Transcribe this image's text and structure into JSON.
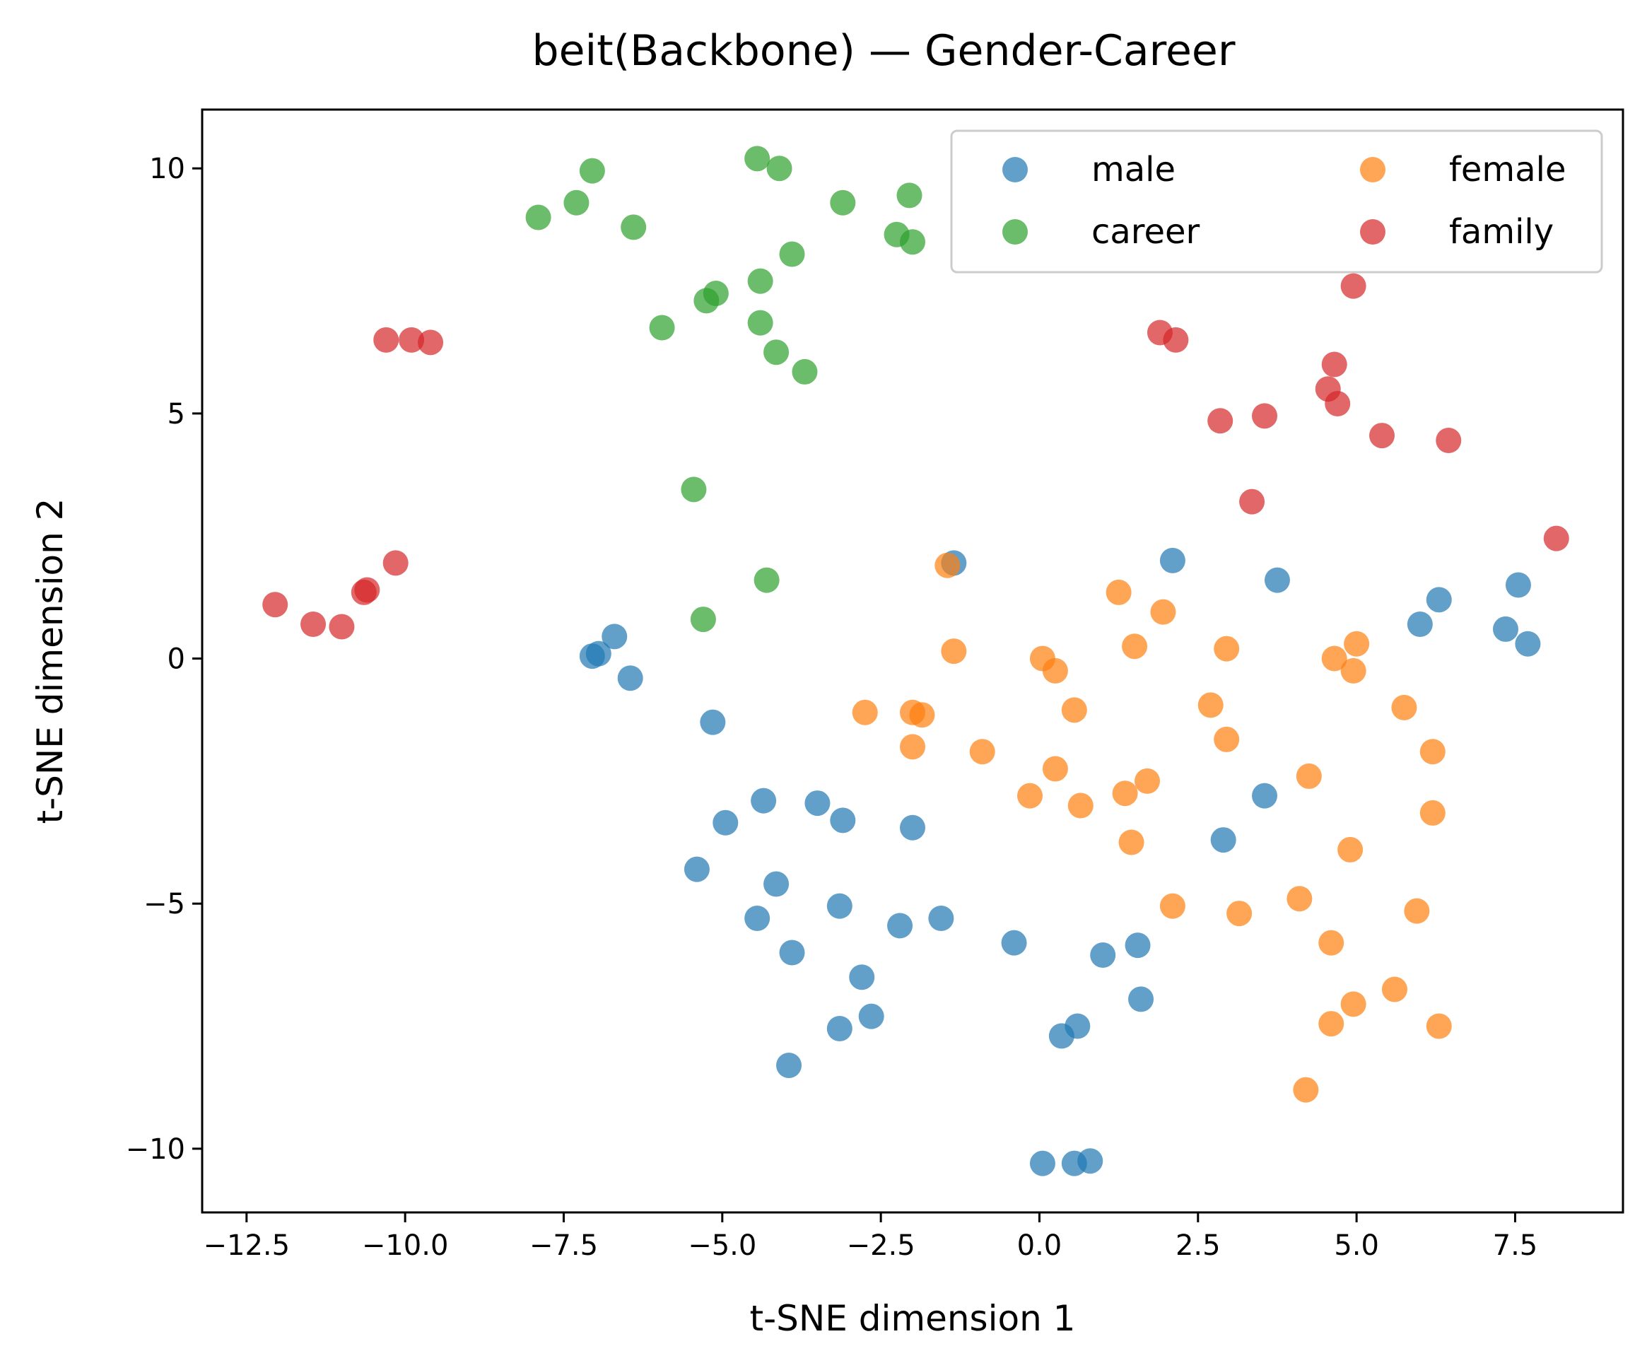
{
  "chart_data": {
    "type": "scatter",
    "title": "beit(Backbone) — Gender-Career",
    "xlabel": "t-SNE dimension 1",
    "ylabel": "t-SNE dimension 2",
    "xlim": [
      -13.2,
      9.2
    ],
    "ylim": [
      -11.3,
      11.2
    ],
    "xticks": [
      -12.5,
      -10.0,
      -7.5,
      -5.0,
      -2.5,
      0.0,
      2.5,
      5.0,
      7.5
    ],
    "xtick_labels": [
      "−12.5",
      "−10.0",
      "−7.5",
      "−5.0",
      "−2.5",
      "0.0",
      "2.5",
      "5.0",
      "7.5"
    ],
    "yticks": [
      -10,
      -5,
      0,
      5,
      10
    ],
    "ytick_labels": [
      "−10",
      "−5",
      "0",
      "5",
      "10"
    ],
    "grid": false,
    "legend": {
      "placement": "top-right",
      "columns": 2
    },
    "series": [
      {
        "name": "male",
        "color": "#1f77b4",
        "points": [
          [
            -1.35,
            1.95
          ],
          [
            2.1,
            2.0
          ],
          [
            3.75,
            1.6
          ],
          [
            7.55,
            1.5
          ],
          [
            6.3,
            1.2
          ],
          [
            6.0,
            0.7
          ],
          [
            7.35,
            0.6
          ],
          [
            7.7,
            0.3
          ],
          [
            -6.7,
            0.45
          ],
          [
            -7.05,
            0.05
          ],
          [
            -6.95,
            0.1
          ],
          [
            -6.45,
            -0.4
          ],
          [
            -5.15,
            -1.3
          ],
          [
            -4.35,
            -2.9
          ],
          [
            -3.5,
            -2.95
          ],
          [
            -3.1,
            -3.3
          ],
          [
            -4.95,
            -3.35
          ],
          [
            -2.0,
            -3.45
          ],
          [
            3.55,
            -2.8
          ],
          [
            2.9,
            -3.7
          ],
          [
            -5.4,
            -4.3
          ],
          [
            -4.15,
            -4.6
          ],
          [
            -3.15,
            -5.05
          ],
          [
            -4.45,
            -5.3
          ],
          [
            -2.2,
            -5.45
          ],
          [
            -1.55,
            -5.3
          ],
          [
            -0.4,
            -5.8
          ],
          [
            1.55,
            -5.85
          ],
          [
            1.0,
            -6.05
          ],
          [
            -3.9,
            -6.0
          ],
          [
            -2.8,
            -6.5
          ],
          [
            1.6,
            -6.95
          ],
          [
            -2.65,
            -7.3
          ],
          [
            -3.15,
            -7.55
          ],
          [
            0.6,
            -7.5
          ],
          [
            0.35,
            -7.7
          ],
          [
            -3.95,
            -8.3
          ],
          [
            0.05,
            -10.3
          ],
          [
            0.55,
            -10.3
          ],
          [
            0.8,
            -10.25
          ]
        ]
      },
      {
        "name": "female",
        "color": "#ff7f0e",
        "points": [
          [
            -1.45,
            1.9
          ],
          [
            1.25,
            1.35
          ],
          [
            1.95,
            0.95
          ],
          [
            -1.35,
            0.15
          ],
          [
            1.5,
            0.25
          ],
          [
            2.95,
            0.2
          ],
          [
            5.0,
            0.3
          ],
          [
            4.65,
            0.0
          ],
          [
            0.05,
            0.0
          ],
          [
            0.25,
            -0.25
          ],
          [
            4.95,
            -0.25
          ],
          [
            -2.75,
            -1.1
          ],
          [
            -2.0,
            -1.1
          ],
          [
            -1.85,
            -1.15
          ],
          [
            0.55,
            -1.05
          ],
          [
            2.7,
            -0.95
          ],
          [
            5.75,
            -1.0
          ],
          [
            2.95,
            -1.65
          ],
          [
            -2.0,
            -1.8
          ],
          [
            -0.9,
            -1.9
          ],
          [
            6.2,
            -1.9
          ],
          [
            0.25,
            -2.25
          ],
          [
            1.7,
            -2.5
          ],
          [
            4.25,
            -2.4
          ],
          [
            -0.15,
            -2.8
          ],
          [
            1.35,
            -2.75
          ],
          [
            0.65,
            -3.0
          ],
          [
            6.2,
            -3.15
          ],
          [
            1.45,
            -3.75
          ],
          [
            4.9,
            -3.9
          ],
          [
            2.1,
            -5.05
          ],
          [
            3.15,
            -5.2
          ],
          [
            4.1,
            -4.9
          ],
          [
            5.95,
            -5.15
          ],
          [
            4.6,
            -5.8
          ],
          [
            5.6,
            -6.75
          ],
          [
            4.95,
            -7.05
          ],
          [
            4.6,
            -7.45
          ],
          [
            6.3,
            -7.5
          ],
          [
            4.2,
            -8.8
          ]
        ]
      },
      {
        "name": "career",
        "color": "#2ca02c",
        "points": [
          [
            -7.05,
            9.95
          ],
          [
            -4.45,
            10.2
          ],
          [
            -4.1,
            10.0
          ],
          [
            -7.3,
            9.3
          ],
          [
            -7.9,
            9.0
          ],
          [
            -6.4,
            8.8
          ],
          [
            -3.1,
            9.3
          ],
          [
            -2.05,
            9.45
          ],
          [
            -2.25,
            8.65
          ],
          [
            -2.0,
            8.5
          ],
          [
            -3.9,
            8.25
          ],
          [
            -4.4,
            7.7
          ],
          [
            -5.25,
            7.3
          ],
          [
            -5.1,
            7.45
          ],
          [
            -5.95,
            6.75
          ],
          [
            -4.4,
            6.85
          ],
          [
            -4.15,
            6.25
          ],
          [
            -3.7,
            5.85
          ],
          [
            -5.45,
            3.45
          ],
          [
            -4.3,
            1.6
          ],
          [
            -5.3,
            0.8
          ]
        ]
      },
      {
        "name": "family",
        "color": "#d62728",
        "points": [
          [
            4.95,
            7.6
          ],
          [
            1.9,
            6.65
          ],
          [
            2.15,
            6.5
          ],
          [
            -10.3,
            6.5
          ],
          [
            -9.9,
            6.5
          ],
          [
            -9.6,
            6.45
          ],
          [
            4.65,
            6.0
          ],
          [
            4.55,
            5.5
          ],
          [
            4.7,
            5.2
          ],
          [
            2.85,
            4.85
          ],
          [
            3.55,
            4.95
          ],
          [
            5.4,
            4.55
          ],
          [
            6.45,
            4.45
          ],
          [
            3.35,
            3.2
          ],
          [
            8.15,
            2.45
          ],
          [
            -10.15,
            1.95
          ],
          [
            -10.6,
            1.4
          ],
          [
            -10.65,
            1.35
          ],
          [
            -12.05,
            1.1
          ],
          [
            -11.45,
            0.7
          ],
          [
            -11.0,
            0.65
          ]
        ]
      }
    ]
  }
}
